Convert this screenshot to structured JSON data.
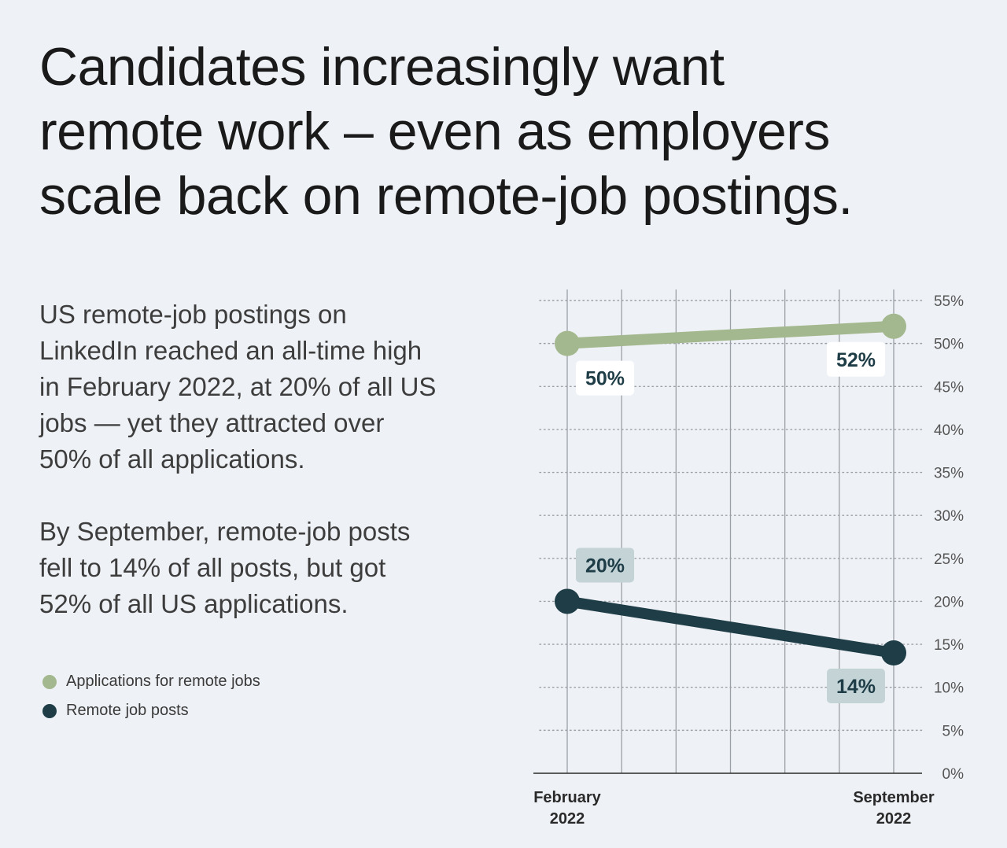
{
  "headline": {
    "line1": "Candidates increasingly want",
    "line2": "remote work – even as employers",
    "line3": "scale back on remote-job postings."
  },
  "paragraph1": {
    "line1": "US remote-job postings on",
    "line2": "LinkedIn reached an all-time high",
    "line3": "in February 2022, at 20% of all US",
    "line4": "jobs — yet they attracted over",
    "line5": "50% of all applications."
  },
  "paragraph2": {
    "line1": "By September, remote-job posts",
    "line2": "fell to 14% of all posts, but got",
    "line3": "52% of all US applications."
  },
  "colors": {
    "background": "#eef1f5",
    "applications": "#a3b88e",
    "posts": "#1e3d47",
    "posts_label_bg": "#c3d3d6",
    "applications_label_bg": "#ffffff",
    "grid": "#9aa0a6",
    "axis": "#2a2a2a"
  },
  "chart_data": {
    "type": "line",
    "title": "",
    "x": [
      {
        "line1": "February",
        "line2": "2022"
      },
      {
        "line1": "September",
        "line2": "2022"
      }
    ],
    "series": [
      {
        "name": "Applications for remote jobs",
        "values": [
          50,
          52
        ],
        "labels": [
          "50%",
          "52%"
        ]
      },
      {
        "name": "Remote job posts",
        "values": [
          20,
          14
        ],
        "labels": [
          "20%",
          "14%"
        ]
      }
    ],
    "ylim": [
      0,
      55
    ],
    "yticks": [
      "0%",
      "5%",
      "10%",
      "15%",
      "20%",
      "25%",
      "30%",
      "35%",
      "40%",
      "45%",
      "50%",
      "55%"
    ],
    "y_axis_side": "right",
    "grid": true,
    "legend": "bottom-left"
  }
}
